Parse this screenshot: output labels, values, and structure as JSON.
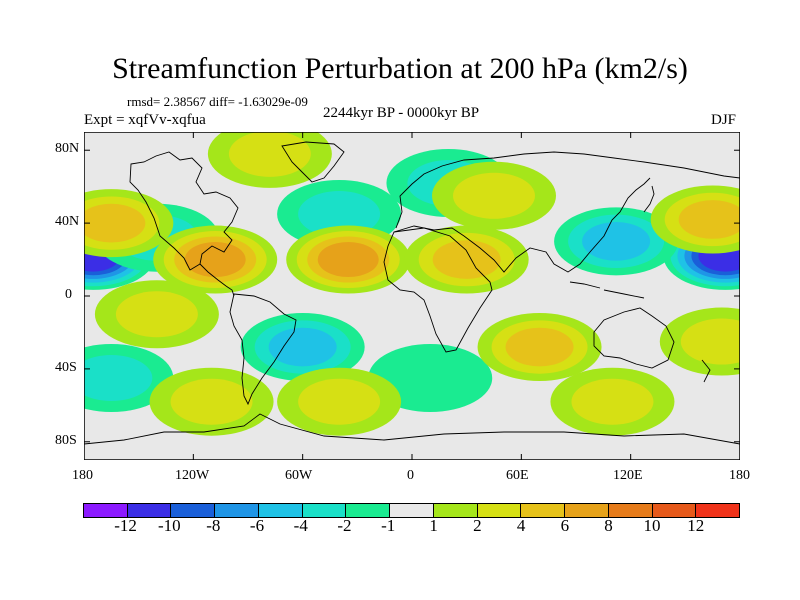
{
  "title": "Streamfunction Perturbation at 200 hPa (km2/s)",
  "stats": "rmsd= 2.38567  diff= -1.63029e-09",
  "experiment": "Expt = xqfVv-xqfua",
  "period": "2244kyr BP - 0000kyr BP",
  "season": "DJF",
  "lat_labels": [
    "80N",
    "40N",
    "0",
    "40S",
    "80S"
  ],
  "lon_labels": [
    "180",
    "120W",
    "60W",
    "0",
    "60E",
    "120E",
    "180"
  ],
  "colorbar": {
    "colors": [
      "#8c1aff",
      "#3b2ee6",
      "#1a5fd9",
      "#1f95e6",
      "#1fc2e6",
      "#1ae0c8",
      "#1aeb91",
      "#e8e8e8",
      "#a5e61a",
      "#d6e014",
      "#e6c21a",
      "#e6a21a",
      "#e67b1a",
      "#e6591a",
      "#f0331a"
    ],
    "labels": [
      "-12",
      "-10",
      "-8",
      "-6",
      "-4",
      "-2",
      "-1",
      "1",
      "2",
      "4",
      "6",
      "8",
      "10",
      "12"
    ]
  },
  "chart_data": {
    "type": "map",
    "variable": "streamfunction perturbation",
    "level": "200 hPa",
    "units": "km2/s",
    "xlim": [
      -180,
      180
    ],
    "ylim": [
      -90,
      90
    ],
    "xticks": [
      -180,
      -120,
      -60,
      0,
      60,
      120,
      180
    ],
    "yticks": [
      80,
      40,
      0,
      -40,
      -80
    ],
    "levels": [
      -12,
      -10,
      -8,
      -6,
      -4,
      -2,
      -1,
      1,
      2,
      4,
      6,
      8,
      10,
      12
    ],
    "features": [
      {
        "lon": -175,
        "lat": 22,
        "value": -11
      },
      {
        "lon": 172,
        "lat": 22,
        "value": -10
      },
      {
        "lon": 112,
        "lat": 30,
        "value": -5
      },
      {
        "lon": -60,
        "lat": -28,
        "value": -5
      },
      {
        "lon": -140,
        "lat": 32,
        "value": -3
      },
      {
        "lon": -40,
        "lat": 45,
        "value": -3
      },
      {
        "lon": 20,
        "lat": 62,
        "value": -2
      },
      {
        "lon": 10,
        "lat": -45,
        "value": -1.5
      },
      {
        "lon": -165,
        "lat": -45,
        "value": -2
      },
      {
        "lon": -108,
        "lat": 20,
        "value": 6
      },
      {
        "lon": -35,
        "lat": 20,
        "value": 6
      },
      {
        "lon": 30,
        "lat": 20,
        "value": 5
      },
      {
        "lon": 70,
        "lat": -28,
        "value": 4
      },
      {
        "lon": -165,
        "lat": 40,
        "value": 4
      },
      {
        "lon": -78,
        "lat": 78,
        "value": 3
      },
      {
        "lon": 45,
        "lat": 55,
        "value": 2
      },
      {
        "lon": 165,
        "lat": 42,
        "value": 4
      },
      {
        "lon": -140,
        "lat": -10,
        "value": 2
      },
      {
        "lon": 170,
        "lat": -25,
        "value": 2
      },
      {
        "lon": -110,
        "lat": -58,
        "value": 2
      },
      {
        "lon": 110,
        "lat": -58,
        "value": 2
      },
      {
        "lon": -40,
        "lat": -58,
        "value": 2
      }
    ]
  }
}
